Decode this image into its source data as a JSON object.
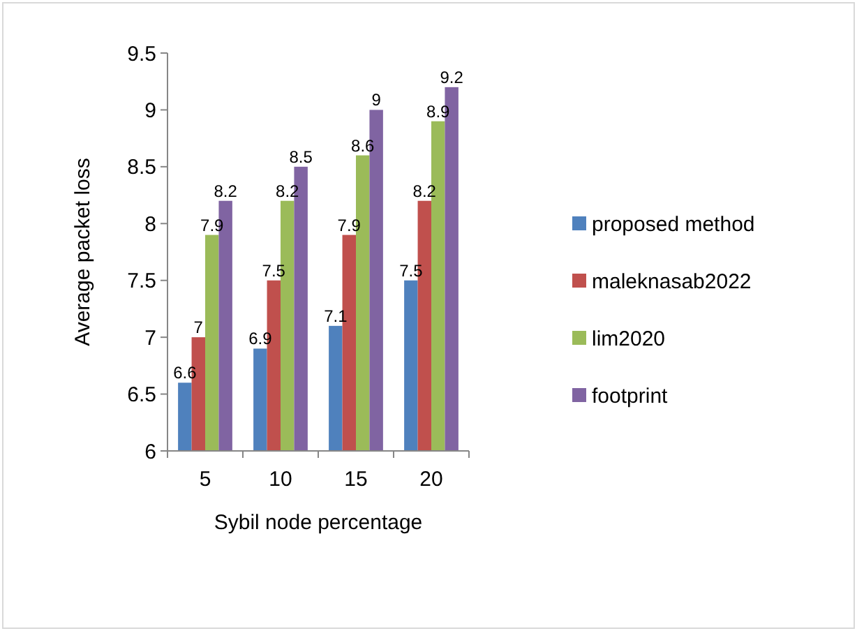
{
  "chart_data": {
    "type": "bar",
    "xlabel": "Sybil node percentage",
    "ylabel": "Average packet loss",
    "categories": [
      "5",
      "10",
      "15",
      "20"
    ],
    "series": [
      {
        "name": "proposed method",
        "color": "#4f81bd",
        "values": [
          6.6,
          6.9,
          7.1,
          7.5
        ]
      },
      {
        "name": "maleknasab2022",
        "color": "#c0504d",
        "values": [
          7,
          7.5,
          7.9,
          8.2
        ]
      },
      {
        "name": "lim2020",
        "color": "#9bbb59",
        "values": [
          7.9,
          8.2,
          8.6,
          8.9
        ]
      },
      {
        "name": "footprint",
        "color": "#8064a2",
        "values": [
          8.2,
          8.5,
          9,
          9.2
        ]
      }
    ],
    "ylim": [
      6,
      9.5
    ],
    "yticks": [
      6,
      6.5,
      7,
      7.5,
      8,
      8.5,
      9,
      9.5
    ],
    "grid": false,
    "legend": "right",
    "data_labels": true
  }
}
